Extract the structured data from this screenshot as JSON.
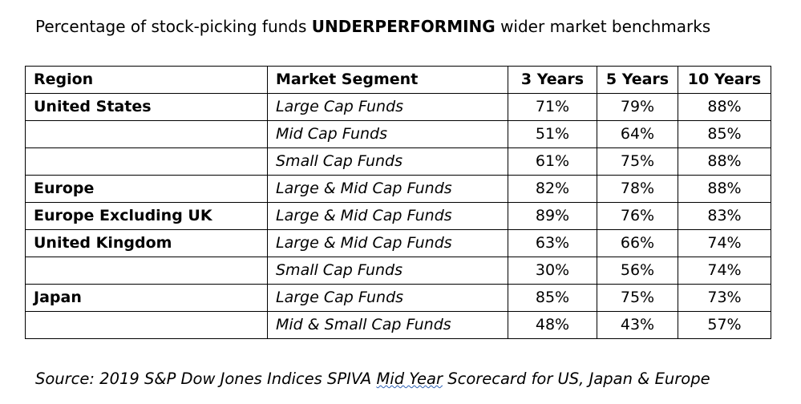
{
  "title": {
    "prefix": "Percentage of stock-picking funds ",
    "emphasis": "UNDERPERFORMING",
    "suffix": " wider market benchmarks"
  },
  "table": {
    "headers": [
      "Region",
      "Market Segment",
      "3 Years",
      "5 Years",
      "10 Years"
    ],
    "rows": [
      {
        "region": "United States",
        "segment": "Large Cap Funds",
        "y3": "71%",
        "y5": "79%",
        "y10": "88%"
      },
      {
        "region": "",
        "segment": "Mid Cap Funds",
        "y3": "51%",
        "y5": "64%",
        "y10": "85%"
      },
      {
        "region": "",
        "segment": "Small Cap Funds",
        "y3": "61%",
        "y5": "75%",
        "y10": "88%"
      },
      {
        "region": "Europe",
        "segment": "Large & Mid Cap Funds",
        "y3": "82%",
        "y5": "78%",
        "y10": "88%"
      },
      {
        "region": "Europe Excluding UK",
        "segment": "Large & Mid Cap Funds",
        "y3": "89%",
        "y5": "76%",
        "y10": "83%"
      },
      {
        "region": "United Kingdom",
        "segment": "Large & Mid Cap Funds",
        "y3": "63%",
        "y5": "66%",
        "y10": "74%"
      },
      {
        "region": "",
        "segment": "Small Cap Funds",
        "y3": "30%",
        "y5": "56%",
        "y10": "74%"
      },
      {
        "region": "Japan",
        "segment": "Large Cap Funds",
        "y3": "85%",
        "y5": "75%",
        "y10": "73%"
      },
      {
        "region": "",
        "segment": "Mid & Small Cap Funds",
        "y3": "48%",
        "y5": "43%",
        "y10": "57%"
      }
    ]
  },
  "source": {
    "prefix": "Source:  2019 S&P Dow Jones Indices SPIVA ",
    "underlined": "Mid Year",
    "suffix": " Scorecard for US, Japan & Europe"
  }
}
